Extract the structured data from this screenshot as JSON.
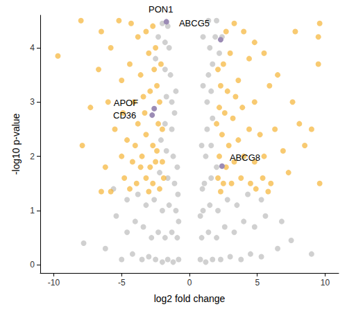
{
  "chart_data": {
    "type": "scatter",
    "x_label": "log2 fold change",
    "y_label": "-log10 p-value",
    "xlim": [
      -11,
      11
    ],
    "ylim": [
      -0.15,
      4.6
    ],
    "xticks": [
      -10,
      -5,
      0,
      5,
      10
    ],
    "yticks": [
      0,
      1,
      2,
      3,
      4
    ],
    "grid": false,
    "series": [
      {
        "color": "#a9a9a9",
        "values": [
          [
            -0.8,
            0.1
          ],
          [
            -1.2,
            0.05
          ],
          [
            -1.6,
            0.1
          ],
          [
            -2.0,
            0.05
          ],
          [
            -2.5,
            0.1
          ],
          [
            -3.0,
            0.15
          ],
          [
            -3.5,
            0.1
          ],
          [
            -4.2,
            0.2
          ],
          [
            -5.0,
            0.1
          ],
          [
            -6.2,
            0.3
          ],
          [
            -7.8,
            0.4
          ],
          [
            -0.9,
            0.5
          ],
          [
            -1.3,
            0.6
          ],
          [
            -1.8,
            0.5
          ],
          [
            -2.3,
            0.6
          ],
          [
            -2.8,
            0.5
          ],
          [
            -3.4,
            0.7
          ],
          [
            -4.0,
            0.8
          ],
          [
            -4.6,
            0.6
          ],
          [
            -5.4,
            0.9
          ],
          [
            -1.0,
            1.0
          ],
          [
            -1.5,
            1.1
          ],
          [
            -2.0,
            1.0
          ],
          [
            -2.6,
            1.2
          ],
          [
            -3.2,
            1.1
          ],
          [
            -3.8,
            1.3
          ],
          [
            -4.6,
            1.2
          ],
          [
            -5.6,
            1.4
          ],
          [
            -1.1,
            1.5
          ],
          [
            -1.6,
            1.6
          ],
          [
            -2.2,
            1.7
          ],
          [
            -1.2,
            2.0
          ],
          [
            -1.7,
            2.1
          ],
          [
            -2.1,
            2.3
          ],
          [
            -1.3,
            2.5
          ],
          [
            -1.8,
            2.6
          ],
          [
            -1.3,
            3.0
          ],
          [
            -1.7,
            3.1
          ],
          [
            -1.4,
            3.5
          ],
          [
            -1.8,
            3.6
          ],
          [
            -1.5,
            4.0
          ],
          [
            -1.8,
            4.1
          ],
          [
            -1.6,
            4.4
          ],
          [
            -2.0,
            4.45
          ],
          [
            -2.3,
            4.2
          ],
          [
            -2.5,
            3.8
          ],
          [
            -1.0,
            3.2
          ],
          [
            -1.1,
            2.8
          ],
          [
            -0.9,
            1.8
          ],
          [
            -0.8,
            0.8
          ],
          [
            0.8,
            0.1
          ],
          [
            1.2,
            0.05
          ],
          [
            1.7,
            0.1
          ],
          [
            2.3,
            0.1
          ],
          [
            3.0,
            0.15
          ],
          [
            3.8,
            0.1
          ],
          [
            4.5,
            0.2
          ],
          [
            5.3,
            0.15
          ],
          [
            6.5,
            0.3
          ],
          [
            7.5,
            0.45
          ],
          [
            9.0,
            0.2
          ],
          [
            0.9,
            0.5
          ],
          [
            1.4,
            0.6
          ],
          [
            2.0,
            0.5
          ],
          [
            2.6,
            0.7
          ],
          [
            3.3,
            0.6
          ],
          [
            4.0,
            0.8
          ],
          [
            4.8,
            0.7
          ],
          [
            5.6,
            0.9
          ],
          [
            6.8,
            0.8
          ],
          [
            1.0,
            1.0
          ],
          [
            1.5,
            1.1
          ],
          [
            2.1,
            1.0
          ],
          [
            2.8,
            1.2
          ],
          [
            3.5,
            1.1
          ],
          [
            4.3,
            1.3
          ],
          [
            5.3,
            1.2
          ],
          [
            1.1,
            1.5
          ],
          [
            1.6,
            1.6
          ],
          [
            2.0,
            1.8
          ],
          [
            1.2,
            2.0
          ],
          [
            1.6,
            2.2
          ],
          [
            1.3,
            2.5
          ],
          [
            1.7,
            2.7
          ],
          [
            1.3,
            3.0
          ],
          [
            1.6,
            3.2
          ],
          [
            1.4,
            3.5
          ],
          [
            1.7,
            3.7
          ],
          [
            1.5,
            4.0
          ],
          [
            1.9,
            4.2
          ],
          [
            1.4,
            4.5
          ],
          [
            2.0,
            4.5
          ],
          [
            2.4,
            4.2
          ],
          [
            1.0,
            3.3
          ],
          [
            0.9,
            2.2
          ],
          [
            0.8,
            0.9
          ],
          [
            1.0,
            4.2
          ],
          [
            2.2,
            3.9
          ],
          [
            0.95,
            1.4
          ],
          [
            -0.85,
            1.3
          ]
        ]
      },
      {
        "color": "#f5b335",
        "values": [
          [
            -9.7,
            3.85
          ],
          [
            -8.0,
            4.5
          ],
          [
            -6.5,
            4.3
          ],
          [
            -5.8,
            4.0
          ],
          [
            -5.2,
            4.5
          ],
          [
            -4.3,
            4.45
          ],
          [
            -3.8,
            4.2
          ],
          [
            -3.2,
            4.3
          ],
          [
            -2.7,
            4.4
          ],
          [
            -6.7,
            3.6
          ],
          [
            -5.0,
            3.4
          ],
          [
            -4.4,
            3.7
          ],
          [
            -3.6,
            3.5
          ],
          [
            -3.0,
            3.9
          ],
          [
            -2.6,
            3.6
          ],
          [
            -7.3,
            2.9
          ],
          [
            -6.0,
            3.0
          ],
          [
            -4.9,
            2.8
          ],
          [
            -4.1,
            3.0
          ],
          [
            -3.4,
            3.1
          ],
          [
            -2.9,
            3.2
          ],
          [
            -2.4,
            3.3
          ],
          [
            -5.5,
            2.5
          ],
          [
            -4.6,
            2.3
          ],
          [
            -3.8,
            2.6
          ],
          [
            -3.2,
            2.4
          ],
          [
            -2.7,
            2.2
          ],
          [
            -2.3,
            2.6
          ],
          [
            -5.0,
            2.0
          ],
          [
            -4.2,
            1.9
          ],
          [
            -3.5,
            2.0
          ],
          [
            -2.9,
            1.8
          ],
          [
            -2.5,
            1.9
          ],
          [
            -6.2,
            1.8
          ],
          [
            -4.8,
            1.6
          ],
          [
            -3.9,
            1.5
          ],
          [
            -3.2,
            1.6
          ],
          [
            -2.7,
            1.5
          ],
          [
            -2.2,
            1.4
          ],
          [
            -5.8,
            1.35
          ],
          [
            -6.5,
            1.35
          ],
          [
            -4.4,
            1.4
          ],
          [
            -3.6,
            1.8
          ],
          [
            -2.4,
            2.1
          ],
          [
            -2.2,
            3.0
          ],
          [
            -2.1,
            3.7
          ],
          [
            -2.0,
            2.5
          ],
          [
            -1.9,
            1.6
          ],
          [
            -2.0,
            1.9
          ],
          [
            -2.5,
            4.0
          ],
          [
            -3.3,
            2.8
          ],
          [
            -4.0,
            2.2
          ],
          [
            -7.9,
            2.2
          ],
          [
            -3.0,
            1.35
          ],
          [
            9.6,
            4.45
          ],
          [
            9.5,
            4.2
          ],
          [
            7.8,
            4.3
          ],
          [
            4.8,
            4.1
          ],
          [
            4.0,
            4.3
          ],
          [
            3.3,
            4.45
          ],
          [
            2.7,
            4.3
          ],
          [
            3.0,
            3.9
          ],
          [
            2.5,
            3.7
          ],
          [
            4.4,
            3.8
          ],
          [
            5.5,
            3.9
          ],
          [
            9.5,
            3.7
          ],
          [
            6.5,
            3.5
          ],
          [
            3.6,
            3.4
          ],
          [
            2.8,
            3.2
          ],
          [
            2.3,
            3.3
          ],
          [
            5.9,
            3.3
          ],
          [
            7.6,
            3.0
          ],
          [
            4.8,
            3.0
          ],
          [
            3.9,
            2.9
          ],
          [
            3.2,
            2.7
          ],
          [
            2.6,
            2.8
          ],
          [
            2.2,
            2.9
          ],
          [
            9.0,
            2.5
          ],
          [
            8.1,
            2.6
          ],
          [
            6.3,
            2.5
          ],
          [
            5.2,
            2.4
          ],
          [
            4.4,
            2.5
          ],
          [
            3.6,
            2.3
          ],
          [
            2.9,
            2.2
          ],
          [
            2.4,
            2.4
          ],
          [
            6.9,
            2.1
          ],
          [
            5.5,
            2.0
          ],
          [
            4.8,
            1.9
          ],
          [
            4.0,
            2.0
          ],
          [
            3.3,
            1.9
          ],
          [
            2.7,
            1.8
          ],
          [
            2.2,
            2.0
          ],
          [
            7.3,
            1.7
          ],
          [
            6.0,
            1.5
          ],
          [
            5.4,
            1.6
          ],
          [
            4.5,
            1.5
          ],
          [
            3.8,
            1.6
          ],
          [
            3.1,
            1.5
          ],
          [
            2.5,
            1.5
          ],
          [
            2.1,
            1.6
          ],
          [
            9.6,
            1.5
          ],
          [
            5.8,
            1.35
          ],
          [
            4.9,
            1.4
          ],
          [
            2.3,
            1.35
          ],
          [
            2.0,
            2.6
          ],
          [
            2.1,
            3.6
          ],
          [
            3.4,
            3.1
          ],
          [
            8.5,
            2.2
          ]
        ]
      },
      {
        "color": "#9b8bb5",
        "values": [
          [
            -1.7,
            4.48
          ],
          [
            2.3,
            4.15
          ],
          [
            -2.6,
            2.88
          ],
          [
            -2.75,
            2.76
          ],
          [
            2.4,
            1.82
          ]
        ],
        "labels": [
          "PON1",
          "ABCG5",
          "APOF",
          "CD36",
          "ABCG8"
        ]
      }
    ]
  }
}
